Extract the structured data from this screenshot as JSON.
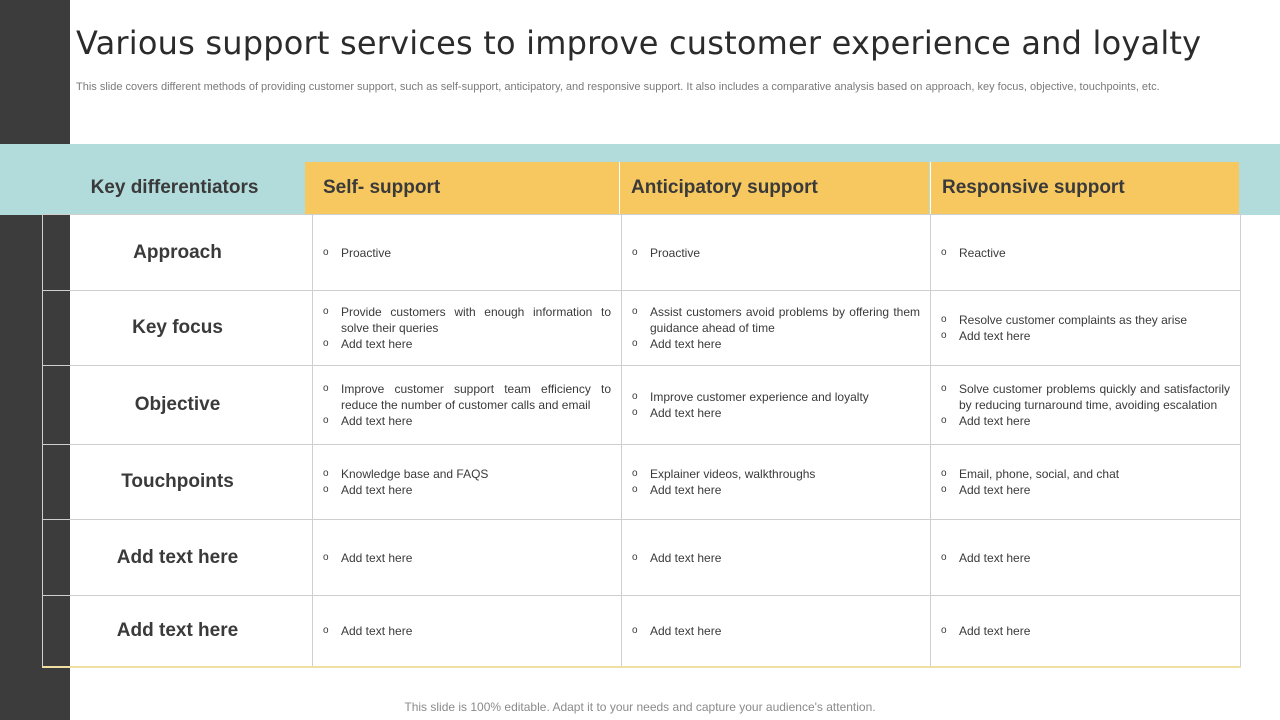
{
  "title": "Various support services to improve customer experience and loyalty",
  "subtitle": "This slide covers different methods of providing customer support, such as self-support, anticipatory, and responsive support. It also includes a comparative analysis based on approach, key focus, objective, touchpoints, etc.",
  "headers": {
    "key": "Key differentiators",
    "col1": "Self- support",
    "col2": "Anticipatory  support",
    "col3": "Responsive support"
  },
  "rows": [
    {
      "label": "Approach",
      "c1": [
        "Proactive"
      ],
      "c2": [
        "Proactive"
      ],
      "c3": [
        "Reactive"
      ]
    },
    {
      "label": "Key focus",
      "c1": [
        "Provide customers with enough information to solve their queries",
        "Add text here"
      ],
      "c2": [
        "Assist customers avoid problems by offering them guidance ahead of time",
        "Add text here"
      ],
      "c3": [
        "Resolve customer complaints as they arise",
        "Add text here"
      ]
    },
    {
      "label": "Objective",
      "c1": [
        "Improve customer support team efficiency to reduce the number of customer calls and email",
        "Add text here"
      ],
      "c2": [
        "Improve customer experience and loyalty",
        "Add text here"
      ],
      "c3": [
        "Solve customer problems quickly and satisfactorily by reducing turnaround time, avoiding escalation",
        "Add text here"
      ]
    },
    {
      "label": "Touchpoints",
      "c1": [
        "Knowledge base and FAQS",
        "Add text here"
      ],
      "c2": [
        "Explainer videos, walkthroughs",
        "Add text here"
      ],
      "c3": [
        "Email, phone, social, and chat",
        "Add text here"
      ]
    },
    {
      "label": "Add text here",
      "c1": [
        "Add text here"
      ],
      "c2": [
        "Add text here"
      ],
      "c3": [
        "Add text here"
      ]
    },
    {
      "label": "Add text here",
      "c1": [
        "Add text here"
      ],
      "c2": [
        "Add text here"
      ],
      "c3": [
        "Add text here"
      ]
    }
  ],
  "footer": "This slide is 100% editable. Adapt it to your needs and capture your audience's attention.",
  "colors": {
    "accent": "#f6c85f",
    "band": "#b2dcdb",
    "sidebar": "#3c3c3c"
  }
}
